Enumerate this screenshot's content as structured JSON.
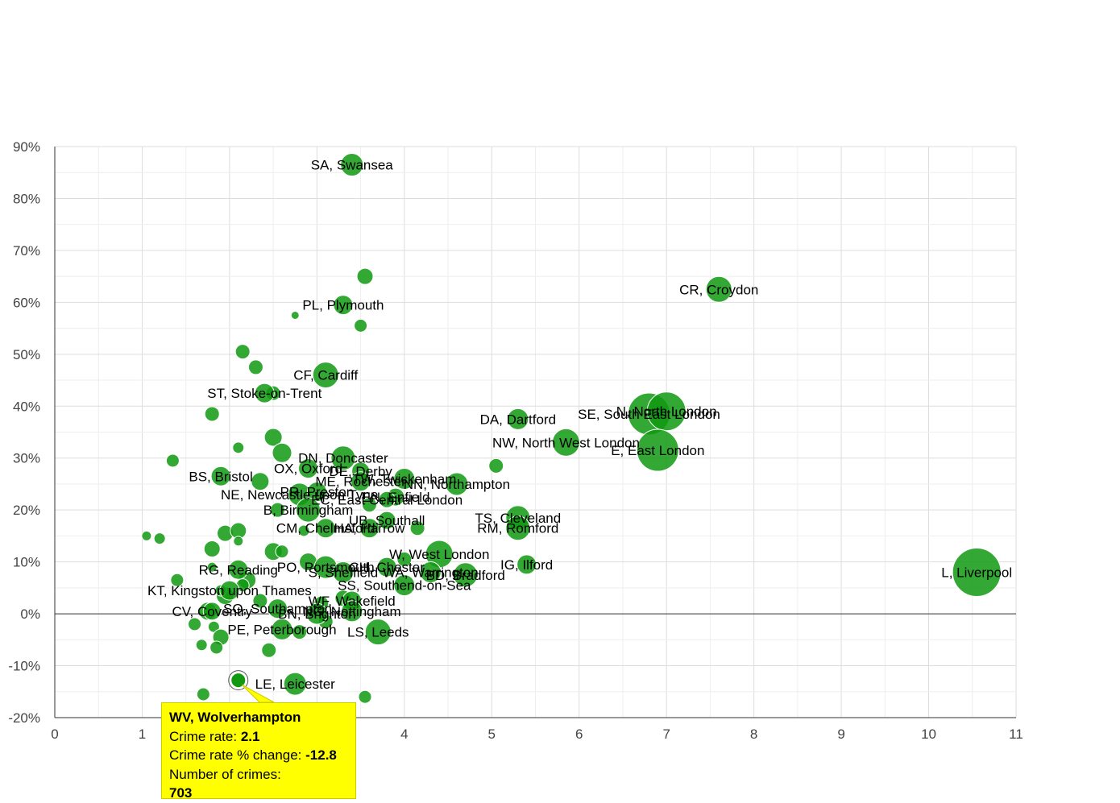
{
  "chart_data": {
    "type": "scatter",
    "bubble": true,
    "xlabel": "",
    "ylabel": "",
    "xlim": [
      0,
      11
    ],
    "ylim": [
      -20,
      90
    ],
    "x_ticks": [
      "0",
      "1",
      "2",
      "3",
      "4",
      "5",
      "6",
      "7",
      "8",
      "9",
      "10",
      "11"
    ],
    "y_ticks": [
      "-20%",
      "-10%",
      "0%",
      "10%",
      "20%",
      "30%",
      "40%",
      "50%",
      "60%",
      "70%",
      "80%",
      "90%"
    ],
    "colors": {
      "bubble": "#119911",
      "bubble_stroke": "#ffffff",
      "highlight": "#119911",
      "grid": "#dddddd",
      "grid_minor": "#eeeeee",
      "zero_line": "#333333"
    },
    "labeled_points": [
      {
        "name": "SA, Swansea",
        "x": 3.4,
        "y": 86.5,
        "size": 14
      },
      {
        "name": "CR, Croydon",
        "x": 7.6,
        "y": 62.5,
        "size": 16
      },
      {
        "name": "PL, Plymouth",
        "x": 3.3,
        "y": 59.5,
        "size": 12
      },
      {
        "name": "CF, Cardiff",
        "x": 3.1,
        "y": 46.0,
        "size": 16
      },
      {
        "name": "ST, Stoke-on-Trent",
        "x": 2.4,
        "y": 42.5,
        "size": 12
      },
      {
        "name": "DA, Dartford",
        "x": 5.3,
        "y": 37.5,
        "size": 13
      },
      {
        "name": "SE, South East London",
        "x": 6.8,
        "y": 38.5,
        "size": 26
      },
      {
        "name": "N, North London",
        "x": 7.0,
        "y": 39.0,
        "size": 24
      },
      {
        "name": "NW, North West London",
        "x": 5.85,
        "y": 33.0,
        "size": 17
      },
      {
        "name": "E, East London",
        "x": 6.9,
        "y": 31.5,
        "size": 26
      },
      {
        "name": "DN, Doncaster",
        "x": 3.3,
        "y": 30.0,
        "size": 15
      },
      {
        "name": "OX, Oxford",
        "x": 2.9,
        "y": 28.0,
        "size": 12
      },
      {
        "name": "DE, Derby",
        "x": 3.5,
        "y": 27.5,
        "size": 11
      },
      {
        "name": "BS, Bristol",
        "x": 1.9,
        "y": 26.5,
        "size": 12
      },
      {
        "name": "ME, Rochester",
        "x": 3.5,
        "y": 25.5,
        "size": 12
      },
      {
        "name": "TW, Twickenham",
        "x": 4.0,
        "y": 26.0,
        "size": 13
      },
      {
        "name": "NN, Northampton",
        "x": 4.6,
        "y": 25.0,
        "size": 14
      },
      {
        "name": "NE, Newcastle upon Tyne",
        "x": 2.8,
        "y": 23.0,
        "size": 14
      },
      {
        "name": "PR, Preston",
        "x": 3.0,
        "y": 23.5,
        "size": 12
      },
      {
        "name": "EN, Enfield",
        "x": 3.9,
        "y": 22.5,
        "size": 11
      },
      {
        "name": "EC, East Central London",
        "x": 3.8,
        "y": 22.0,
        "size": 10
      },
      {
        "name": "B, Birmingham",
        "x": 2.9,
        "y": 20.0,
        "size": 15
      },
      {
        "name": "UB, Southall",
        "x": 3.8,
        "y": 18.0,
        "size": 11
      },
      {
        "name": "TS, Cleveland",
        "x": 5.3,
        "y": 18.5,
        "size": 15
      },
      {
        "name": "CM, Chelmsford",
        "x": 3.1,
        "y": 16.5,
        "size": 12
      },
      {
        "name": "HA, Harrow",
        "x": 3.6,
        "y": 16.5,
        "size": 12
      },
      {
        "name": "RM, Romford",
        "x": 5.3,
        "y": 16.5,
        "size": 15
      },
      {
        "name": "W, West London",
        "x": 4.4,
        "y": 11.5,
        "size": 17
      },
      {
        "name": "IG, Ilford",
        "x": 5.4,
        "y": 9.5,
        "size": 12
      },
      {
        "name": "L, Liverpool",
        "x": 10.55,
        "y": 8.0,
        "size": 30
      },
      {
        "name": "PO, Portsmouth",
        "x": 3.1,
        "y": 9.0,
        "size": 14
      },
      {
        "name": "S, Sheffield",
        "x": 3.3,
        "y": 8.0,
        "size": 13
      },
      {
        "name": "CH, Chester",
        "x": 3.8,
        "y": 9.0,
        "size": 12
      },
      {
        "name": "WA, Warrington",
        "x": 4.3,
        "y": 8.0,
        "size": 13
      },
      {
        "name": "RG, Reading",
        "x": 2.1,
        "y": 8.5,
        "size": 12
      },
      {
        "name": "BD, Bradford",
        "x": 4.7,
        "y": 7.5,
        "size": 15
      },
      {
        "name": "SS, Southend-on-Sea",
        "x": 4.0,
        "y": 5.5,
        "size": 13
      },
      {
        "name": "KT, Kingston upon Thames",
        "x": 2.0,
        "y": 4.5,
        "size": 12
      },
      {
        "name": "WF, Wakefield",
        "x": 3.4,
        "y": 2.5,
        "size": 12
      },
      {
        "name": "SO, Southampton",
        "x": 2.55,
        "y": 1.0,
        "size": 12
      },
      {
        "name": "NG, Nottingham",
        "x": 3.4,
        "y": 0.5,
        "size": 13
      },
      {
        "name": "CV, Coventry",
        "x": 1.8,
        "y": 0.5,
        "size": 11
      },
      {
        "name": "BN, Brighton",
        "x": 3.0,
        "y": 0.0,
        "size": 13
      },
      {
        "name": "PE, Peterborough",
        "x": 2.6,
        "y": -3.0,
        "size": 13
      },
      {
        "name": "LS, Leeds",
        "x": 3.7,
        "y": -3.5,
        "size": 16
      },
      {
        "name": "LE, Leicester",
        "x": 2.75,
        "y": -13.5,
        "size": 14
      }
    ],
    "unlabeled_points": [
      {
        "x": 3.55,
        "y": 65.0,
        "size": 10
      },
      {
        "x": 2.75,
        "y": 57.5,
        "size": 5
      },
      {
        "x": 3.5,
        "y": 55.5,
        "size": 8
      },
      {
        "x": 2.15,
        "y": 50.5,
        "size": 9
      },
      {
        "x": 2.3,
        "y": 47.5,
        "size": 9
      },
      {
        "x": 2.5,
        "y": 42.5,
        "size": 9
      },
      {
        "x": 1.8,
        "y": 38.5,
        "size": 9
      },
      {
        "x": 2.5,
        "y": 34.0,
        "size": 11
      },
      {
        "x": 2.1,
        "y": 32.0,
        "size": 7
      },
      {
        "x": 1.35,
        "y": 29.5,
        "size": 8
      },
      {
        "x": 2.6,
        "y": 31.0,
        "size": 12
      },
      {
        "x": 5.05,
        "y": 28.5,
        "size": 9
      },
      {
        "x": 2.35,
        "y": 25.5,
        "size": 11
      },
      {
        "x": 2.55,
        "y": 20.0,
        "size": 9
      },
      {
        "x": 3.6,
        "y": 21.0,
        "size": 9
      },
      {
        "x": 1.05,
        "y": 15.0,
        "size": 6
      },
      {
        "x": 1.2,
        "y": 14.5,
        "size": 7
      },
      {
        "x": 1.95,
        "y": 15.5,
        "size": 10
      },
      {
        "x": 2.1,
        "y": 16.0,
        "size": 10
      },
      {
        "x": 2.1,
        "y": 14.0,
        "size": 6
      },
      {
        "x": 2.85,
        "y": 16.0,
        "size": 7
      },
      {
        "x": 4.15,
        "y": 16.5,
        "size": 9
      },
      {
        "x": 1.8,
        "y": 12.5,
        "size": 10
      },
      {
        "x": 2.5,
        "y": 12.0,
        "size": 11
      },
      {
        "x": 2.6,
        "y": 12.0,
        "size": 8
      },
      {
        "x": 2.9,
        "y": 10.0,
        "size": 11
      },
      {
        "x": 4.0,
        "y": 10.5,
        "size": 9
      },
      {
        "x": 1.4,
        "y": 6.5,
        "size": 8
      },
      {
        "x": 1.8,
        "y": 9.0,
        "size": 6
      },
      {
        "x": 2.2,
        "y": 6.5,
        "size": 11
      },
      {
        "x": 2.15,
        "y": 5.5,
        "size": 8
      },
      {
        "x": 1.95,
        "y": 3.5,
        "size": 11
      },
      {
        "x": 1.9,
        "y": 4.5,
        "size": 7
      },
      {
        "x": 2.35,
        "y": 2.5,
        "size": 9
      },
      {
        "x": 3.3,
        "y": 3.0,
        "size": 10
      },
      {
        "x": 1.75,
        "y": 0.5,
        "size": 11
      },
      {
        "x": 3.05,
        "y": 2.0,
        "size": 9
      },
      {
        "x": 1.6,
        "y": -2.0,
        "size": 8
      },
      {
        "x": 1.82,
        "y": -2.5,
        "size": 7
      },
      {
        "x": 1.9,
        "y": -4.5,
        "size": 10
      },
      {
        "x": 2.8,
        "y": -3.5,
        "size": 9
      },
      {
        "x": 3.1,
        "y": -1.5,
        "size": 9
      },
      {
        "x": 1.68,
        "y": -6.0,
        "size": 7
      },
      {
        "x": 1.85,
        "y": -6.5,
        "size": 8
      },
      {
        "x": 2.45,
        "y": -7.0,
        "size": 9
      },
      {
        "x": 1.7,
        "y": -15.5,
        "size": 8
      },
      {
        "x": 3.55,
        "y": -16.0,
        "size": 8
      }
    ],
    "highlighted_point": {
      "name": "WV, Wolverhampton",
      "x": 2.1,
      "y": -12.8,
      "size": 9
    }
  },
  "tooltip": {
    "title": "WV, Wolverhampton",
    "crime_rate_label": "Crime rate:",
    "crime_rate_value": "2.1",
    "change_label": "Crime rate % change:",
    "change_value": "-12.8",
    "count_label": "Number of crimes:",
    "count_value": "703"
  }
}
